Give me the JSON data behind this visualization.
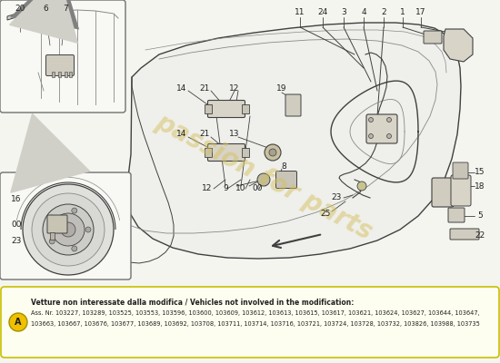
{
  "bg_color": "#f5f5f0",
  "line_color": "#404040",
  "light_line": "#888888",
  "fill_light": "#e8e8e4",
  "fill_white": "#ffffff",
  "fill_mid": "#d0d0c8",
  "title_text": "Vetture non interessate dalla modifica / Vehicles not involved in the modification:",
  "ass_text": "Ass. Nr. 103227, 103289, 103525, 103553, 103596, 103600, 103609, 103612, 103613, 103615, 103617, 103621, 103624, 103627, 103644, 103647,",
  "ass_text2": "103663, 103667, 103676, 103677, 103689, 103692, 103708, 103711, 103714, 103716, 103721, 103724, 103728, 103732, 103826, 103988, 103735",
  "watermark": "passion for parts",
  "watermark_color": "#d4c060",
  "note_bg": "#fefef0",
  "note_border": "#c8c000",
  "A_circle_color": "#f0c000",
  "inset_bg": "#f8f8f4",
  "inset_border": "#707070"
}
